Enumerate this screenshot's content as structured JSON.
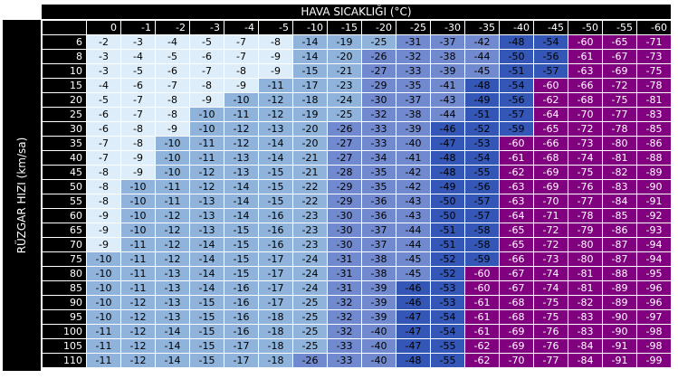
{
  "title": "HAVA SICAKLIĞI (°C)",
  "side_label": "RÜZGAR HIZI (km/sa)",
  "colors": {
    "very_light": "#ddeefa",
    "light": "#8fb3da",
    "medium": "#7189cf",
    "dark": "#3456b6",
    "extreme": "#800080",
    "header": "#000000"
  },
  "temperatures": [
    "0",
    "-1",
    "-2",
    "-3",
    "-4",
    "-5",
    "-10",
    "-15",
    "-20",
    "-25",
    "-30",
    "-35",
    "-40",
    "-45",
    "-50",
    "-55",
    "-60"
  ],
  "rows": [
    {
      "wind": "6",
      "values": [
        -2,
        -3,
        -4,
        -5,
        -7,
        -8,
        -14,
        -19,
        -25,
        -31,
        -37,
        -42,
        -48,
        -54,
        -60,
        -65,
        -71
      ]
    },
    {
      "wind": "8",
      "values": [
        -3,
        -4,
        -5,
        -6,
        -7,
        -9,
        -14,
        -20,
        -26,
        -32,
        -38,
        -44,
        -50,
        -56,
        -61,
        -67,
        -73
      ]
    },
    {
      "wind": "10",
      "values": [
        -3,
        -5,
        -6,
        -7,
        -8,
        -9,
        -15,
        -21,
        -27,
        -33,
        -39,
        -45,
        -51,
        -57,
        -63,
        -69,
        -75
      ]
    },
    {
      "wind": "15",
      "values": [
        -4,
        -6,
        -7,
        -8,
        -9,
        -11,
        -17,
        -23,
        -29,
        -35,
        -41,
        -48,
        -54,
        -60,
        -66,
        -72,
        -78
      ]
    },
    {
      "wind": "20",
      "values": [
        -5,
        -7,
        -8,
        -9,
        -10,
        -12,
        -18,
        -24,
        -30,
        -37,
        -43,
        -49,
        -56,
        -62,
        -68,
        -75,
        -81
      ]
    },
    {
      "wind": "25",
      "values": [
        -6,
        -7,
        -8,
        -10,
        -11,
        -12,
        -19,
        -25,
        -32,
        -38,
        -44,
        -51,
        -57,
        -64,
        -70,
        -77,
        -83
      ]
    },
    {
      "wind": "30",
      "values": [
        -6,
        -8,
        -9,
        -10,
        -12,
        -13,
        -20,
        -26,
        -33,
        -39,
        -46,
        -52,
        -59,
        -65,
        -72,
        -78,
        -85
      ]
    },
    {
      "wind": "35",
      "values": [
        -7,
        -8,
        -10,
        -11,
        -12,
        -14,
        -20,
        -27,
        -33,
        -40,
        -47,
        -53,
        -60,
        -66,
        -73,
        -80,
        -86
      ]
    },
    {
      "wind": "40",
      "values": [
        -7,
        -9,
        -10,
        -11,
        -13,
        -14,
        -21,
        -27,
        -34,
        -41,
        -48,
        -54,
        -61,
        -68,
        -74,
        -81,
        -88
      ]
    },
    {
      "wind": "45",
      "values": [
        -8,
        -9,
        -10,
        -12,
        -13,
        -15,
        -21,
        -28,
        -35,
        -42,
        -48,
        -55,
        -62,
        -69,
        -75,
        -82,
        -89
      ]
    },
    {
      "wind": "50",
      "values": [
        -8,
        -10,
        -11,
        -12,
        -14,
        -15,
        -22,
        -29,
        -35,
        -42,
        -49,
        -56,
        -63,
        -69,
        -76,
        -83,
        -90
      ]
    },
    {
      "wind": "55",
      "values": [
        -8,
        -10,
        -11,
        -13,
        -14,
        -15,
        -22,
        -29,
        -36,
        -43,
        -50,
        -57,
        -63,
        -70,
        -77,
        -84,
        -91
      ]
    },
    {
      "wind": "60",
      "values": [
        -9,
        -10,
        -12,
        -13,
        -14,
        -16,
        -23,
        -30,
        -36,
        -43,
        -50,
        -57,
        -64,
        -71,
        -78,
        -85,
        -92
      ]
    },
    {
      "wind": "65",
      "values": [
        -9,
        -10,
        -12,
        -13,
        -15,
        -16,
        -23,
        -30,
        -37,
        -44,
        -51,
        -58,
        -65,
        -72,
        -79,
        -86,
        -93
      ]
    },
    {
      "wind": "70",
      "values": [
        -9,
        -11,
        -12,
        -14,
        -15,
        -16,
        -23,
        -30,
        -37,
        -44,
        -51,
        -58,
        -65,
        -72,
        -80,
        -87,
        -94
      ]
    },
    {
      "wind": "75",
      "values": [
        -10,
        -11,
        -12,
        -14,
        -15,
        -17,
        -24,
        -31,
        -38,
        -45,
        -52,
        -59,
        -66,
        -73,
        -80,
        -87,
        -94
      ]
    },
    {
      "wind": "80",
      "values": [
        -10,
        -11,
        -13,
        -14,
        -15,
        -17,
        -24,
        -31,
        -38,
        -45,
        -52,
        -60,
        -67,
        -74,
        -81,
        -88,
        -95
      ]
    },
    {
      "wind": "85",
      "values": [
        -10,
        -11,
        -13,
        -14,
        -16,
        -17,
        -24,
        -31,
        -39,
        -46,
        -53,
        -60,
        -67,
        -74,
        -81,
        -89,
        -96
      ]
    },
    {
      "wind": "90",
      "values": [
        -10,
        -12,
        -13,
        -15,
        -16,
        -17,
        -25,
        -32,
        -39,
        -46,
        -53,
        -61,
        -68,
        -75,
        -82,
        -89,
        -96
      ]
    },
    {
      "wind": "95",
      "values": [
        -10,
        -12,
        -13,
        -15,
        -16,
        -18,
        -25,
        -32,
        -39,
        -47,
        -54,
        -61,
        -68,
        -75,
        -83,
        -90,
        -97
      ]
    },
    {
      "wind": "100",
      "values": [
        -11,
        -12,
        -14,
        -15,
        -16,
        -18,
        -25,
        -32,
        -40,
        -47,
        -54,
        -61,
        -69,
        -76,
        -83,
        -90,
        -98
      ]
    },
    {
      "wind": "105",
      "values": [
        -11,
        -12,
        -14,
        -15,
        -17,
        -18,
        -25,
        -33,
        -40,
        -47,
        -55,
        -62,
        -69,
        -76,
        -84,
        -91,
        -98
      ]
    },
    {
      "wind": "110",
      "values": [
        -11,
        -12,
        -14,
        -15,
        -17,
        -18,
        -26,
        -33,
        -40,
        -48,
        -55,
        -62,
        -70,
        -77,
        -84,
        -91,
        -99
      ]
    }
  ]
}
